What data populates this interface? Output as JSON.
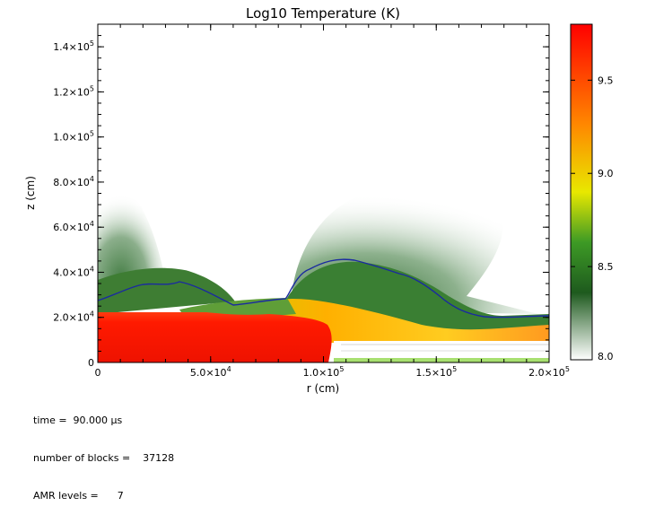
{
  "chart_data": {
    "type": "heatmap",
    "title": "Log10 Temperature (K)",
    "xlabel": "r (cm)",
    "ylabel": "z (cm)",
    "xlim": [
      0,
      200000
    ],
    "ylim": [
      0,
      150000
    ],
    "x_ticks": [
      {
        "value": 0,
        "label": "0"
      },
      {
        "value": 50000,
        "label": "5.0×10",
        "exp": "4"
      },
      {
        "value": 100000,
        "label": "1.0×10",
        "exp": "5"
      },
      {
        "value": 150000,
        "label": "1.5×10",
        "exp": "5"
      },
      {
        "value": 200000,
        "label": "2.0×10",
        "exp": "5"
      }
    ],
    "y_ticks": [
      {
        "value": 0,
        "label": "0"
      },
      {
        "value": 20000,
        "label": "2.0×10",
        "exp": "4"
      },
      {
        "value": 40000,
        "label": "4.0×10",
        "exp": "4"
      },
      {
        "value": 60000,
        "label": "6.0×10",
        "exp": "4"
      },
      {
        "value": 80000,
        "label": "8.0×10",
        "exp": "4"
      },
      {
        "value": 100000,
        "label": "1.0×10",
        "exp": "5"
      },
      {
        "value": 120000,
        "label": "1.2×10",
        "exp": "5"
      },
      {
        "value": 140000,
        "label": "1.4×10",
        "exp": "5"
      }
    ],
    "colorbar": {
      "range": [
        8.0,
        9.8
      ],
      "ticks": [
        "8.0",
        "8.5",
        "9.0",
        "9.5"
      ],
      "tick_values": [
        8.0,
        8.5,
        9.0,
        9.5
      ],
      "colors": [
        "#ffffff",
        "#1e5a1e",
        "#2f8f20",
        "#e8e800",
        "#ff8800",
        "#ff0000"
      ]
    },
    "regions": [
      {
        "name": "hot-slab",
        "log_temperature": 9.75,
        "r_range": [
          0,
          105000
        ],
        "z_range": [
          0,
          22000
        ]
      },
      {
        "name": "green-plume-left",
        "log_temperature": 8.3,
        "r_range": [
          0,
          30000
        ],
        "z_range": [
          20000,
          78000
        ]
      },
      {
        "name": "green-plume-right",
        "log_temperature": 8.3,
        "r_range": [
          88000,
          180000
        ],
        "z_range": [
          20000,
          72000
        ]
      },
      {
        "name": "yellow-shock",
        "log_temperature": 8.8,
        "r_range": [
          82000,
          200000
        ],
        "z_range": [
          8000,
          32000
        ]
      }
    ],
    "contour_color": "#1a2aa0"
  },
  "info": {
    "time_label": "time =  90.000 µs",
    "blocks_label": "number of blocks =    37128",
    "amr_label": "AMR levels =      7"
  }
}
